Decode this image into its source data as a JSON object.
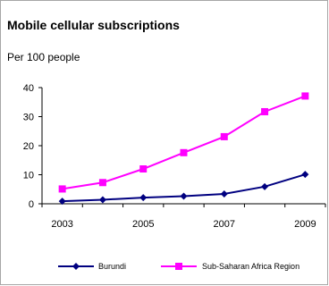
{
  "chart_data": {
    "type": "line",
    "title": "Mobile cellular subscriptions",
    "subtitle": "Per 100 people",
    "x": [
      2003,
      2004,
      2005,
      2006,
      2007,
      2008,
      2009
    ],
    "x_tick_labels": [
      "2003",
      "2005",
      "2007",
      "2009"
    ],
    "ylim": [
      0,
      40
    ],
    "y_tick_labels": [
      "0",
      "10",
      "20",
      "30",
      "40"
    ],
    "grid": false,
    "legend_position": "bottom",
    "series": [
      {
        "name": "Burundi",
        "color": "#000080",
        "marker": "diamond",
        "values": [
          0.9,
          1.4,
          2.1,
          2.6,
          3.4,
          5.9,
          10.1
        ]
      },
      {
        "name": "Sub-Saharan Africa Region",
        "color": "#ff00ff",
        "marker": "square",
        "values": [
          5.1,
          7.3,
          12.0,
          17.6,
          23.1,
          31.7,
          37.1
        ]
      }
    ]
  }
}
